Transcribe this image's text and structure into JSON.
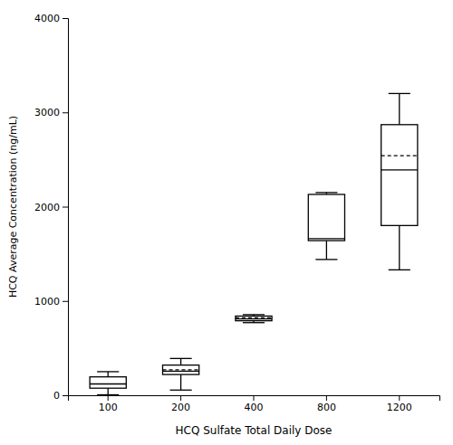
{
  "chart_data": {
    "type": "box",
    "xlabel": "HCQ Sulfate Total Daily Dose",
    "ylabel": "HCQ Average Concentration (ng/mL)",
    "categories": [
      "100",
      "200",
      "400",
      "800",
      "1200"
    ],
    "whisker_low": [
      5,
      55,
      770,
      1440,
      1330
    ],
    "q1": [
      75,
      220,
      790,
      1640,
      1800
    ],
    "median": [
      120,
      255,
      810,
      1660,
      2390
    ],
    "mean": [
      null,
      270,
      820,
      null,
      2540
    ],
    "q3": [
      195,
      320,
      840,
      2130,
      2870
    ],
    "whisker_high": [
      250,
      390,
      855,
      2150,
      3200
    ],
    "color": "black",
    "ylim": [
      0,
      4000
    ],
    "yticks": [
      0,
      1000,
      2000,
      3000,
      4000
    ],
    "grid": false
  }
}
